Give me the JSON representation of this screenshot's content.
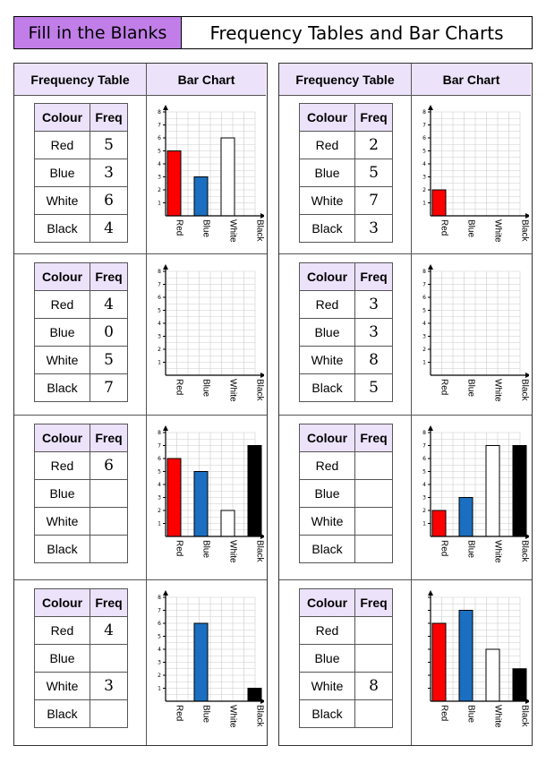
{
  "title": {
    "left": "Fill in the Blanks",
    "right": "Frequency Tables and Bar Charts"
  },
  "headers": {
    "table": "Frequency Table",
    "chart": "Bar Chart"
  },
  "table_headers": {
    "colour": "Colour",
    "freq": "Freq"
  },
  "categories": [
    "Red",
    "Blue",
    "White",
    "Black"
  ],
  "colors": {
    "Red": "#ff0000",
    "Blue": "#1b6fc0",
    "White": "#ffffff",
    "Black": "#000000",
    "accent": "#c17ee8",
    "header_bg": "#ece2fa"
  },
  "items": [
    {
      "freq": [
        "5",
        "3",
        "6",
        "4"
      ]
    },
    {
      "freq": [
        "2",
        "5",
        "7",
        "3"
      ]
    },
    {
      "freq": [
        "4",
        "0",
        "5",
        "7"
      ]
    },
    {
      "freq": [
        "3",
        "3",
        "8",
        "5"
      ]
    },
    {
      "freq": [
        "6",
        "",
        "",
        ""
      ]
    },
    {
      "freq": [
        "",
        "",
        "",
        ""
      ]
    },
    {
      "freq": [
        "4",
        "",
        "3",
        ""
      ]
    },
    {
      "freq": [
        "",
        "",
        "8",
        ""
      ]
    }
  ],
  "chart_data": [
    {
      "type": "bar",
      "categories": [
        "Red",
        "Blue",
        "White",
        "Black"
      ],
      "values": [
        5,
        3,
        6,
        null
      ],
      "ylim": [
        0,
        8
      ],
      "yticks": [
        1,
        2,
        3,
        4,
        5,
        6,
        7,
        8
      ]
    },
    {
      "type": "bar",
      "categories": [
        "Red",
        "Blue",
        "White",
        "Black"
      ],
      "values": [
        2,
        null,
        null,
        null
      ],
      "ylim": [
        0,
        8
      ],
      "yticks": [
        1,
        2,
        3,
        4,
        5,
        6,
        7,
        8
      ]
    },
    {
      "type": "bar",
      "categories": [
        "Red",
        "Blue",
        "White",
        "Black"
      ],
      "values": [
        null,
        null,
        null,
        null
      ],
      "ylim": [
        0,
        8
      ],
      "yticks": [
        1,
        2,
        3,
        4,
        5,
        6,
        7,
        8
      ]
    },
    {
      "type": "bar",
      "categories": [
        "Red",
        "Blue",
        "White",
        "Black"
      ],
      "values": [
        null,
        null,
        null,
        null
      ],
      "ylim": [
        0,
        8
      ],
      "yticks": [
        1,
        2,
        3,
        4,
        5,
        6,
        7,
        8
      ]
    },
    {
      "type": "bar",
      "categories": [
        "Red",
        "Blue",
        "White",
        "Black"
      ],
      "values": [
        6,
        5,
        2,
        7
      ],
      "ylim": [
        0,
        8
      ],
      "yticks": [
        1,
        2,
        3,
        4,
        5,
        6,
        7,
        8
      ]
    },
    {
      "type": "bar",
      "categories": [
        "Red",
        "Blue",
        "White",
        "Black"
      ],
      "values": [
        2,
        3,
        7,
        7
      ],
      "ylim": [
        0,
        8
      ],
      "yticks": [
        1,
        2,
        3,
        4,
        5,
        6,
        7,
        8
      ]
    },
    {
      "type": "bar",
      "categories": [
        "Red",
        "Blue",
        "White",
        "Black"
      ],
      "values": [
        null,
        6,
        null,
        1
      ],
      "ylim": [
        0,
        8
      ],
      "yticks": [
        1,
        2,
        3,
        4,
        5,
        6,
        7,
        8
      ]
    },
    {
      "type": "bar",
      "categories": [
        "Red",
        "Blue",
        "White",
        "Black"
      ],
      "values": [
        6,
        7,
        4,
        2.5
      ],
      "ylim": [
        0,
        8
      ],
      "yticks": []
    }
  ]
}
